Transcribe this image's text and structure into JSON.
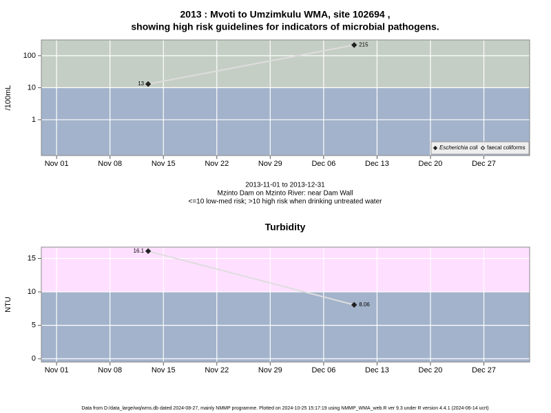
{
  "footer": "Data from D:/data_large/wq/wms.db dated 2024-08-27, mainly NMMP programme. Plotted on 2024-10-25 15:17:19 using NMMP_WMA_web.R ver 9.3 under R version 4.4.1 (2024-06-14 ucrt)",
  "chart_data": [
    {
      "type": "line",
      "title": [
        "2013 : Mvoti to Umzimkulu WMA, site 102694 ,",
        "showing high risk guidelines for indicators of microbial pathogens."
      ],
      "y_label": "/100mL",
      "caption": [
        "2013-11-01 to 2013-12-31",
        "Mzinto Dam on Mzinto River: near Dam Wall",
        "<=10 low-med risk; >10 high risk when drinking untreated water"
      ],
      "log_scale": true,
      "x": [
        "2013-11-13",
        "2013-12-10"
      ],
      "series": [
        {
          "name": "Escherichia coli",
          "color": "#222222",
          "line_color": "#dddddd",
          "marker": "filled-diamond",
          "values": [
            13,
            215
          ]
        },
        {
          "name": "faecal coliforms",
          "color": "#222222",
          "line_color": "#dddddd",
          "marker": "open-diamond",
          "values": [
            null,
            null
          ]
        }
      ],
      "xlim": [
        "2013-10-30",
        "2014-01-02"
      ],
      "xticks": [
        {
          "value": "2013-11-01",
          "label": "Nov 01"
        },
        {
          "value": "2013-11-08",
          "label": "Nov 08"
        },
        {
          "value": "2013-11-15",
          "label": "Nov 15"
        },
        {
          "value": "2013-11-22",
          "label": "Nov 22"
        },
        {
          "value": "2013-11-29",
          "label": "Nov 29"
        },
        {
          "value": "2013-12-06",
          "label": "Dec 06"
        },
        {
          "value": "2013-12-13",
          "label": "Dec 13"
        },
        {
          "value": "2013-12-20",
          "label": "Dec 20"
        },
        {
          "value": "2013-12-27",
          "label": "Dec 27"
        }
      ],
      "ylim": [
        0.076,
        310
      ],
      "yticks": [
        1,
        10,
        100
      ],
      "threshold": 10,
      "band_colors": {
        "above": "#c5cec4",
        "below": "#a3b3cb"
      },
      "grid": true,
      "legend": "bottom right"
    },
    {
      "type": "line",
      "title": [
        "Turbidity"
      ],
      "y_label": "NTU",
      "log_scale": false,
      "x": [
        "2013-11-13",
        "2013-12-10"
      ],
      "values": [
        16.1,
        8.06
      ],
      "color": "#222222",
      "line_color": "#dddddd",
      "xlim": [
        "2013-10-30",
        "2014-01-02"
      ],
      "xticks": [
        {
          "value": "2013-11-01",
          "label": "Nov 01"
        },
        {
          "value": "2013-11-08",
          "label": "Nov 08"
        },
        {
          "value": "2013-11-15",
          "label": "Nov 15"
        },
        {
          "value": "2013-11-22",
          "label": "Nov 22"
        },
        {
          "value": "2013-11-29",
          "label": "Nov 29"
        },
        {
          "value": "2013-12-06",
          "label": "Dec 06"
        },
        {
          "value": "2013-12-13",
          "label": "Dec 13"
        },
        {
          "value": "2013-12-20",
          "label": "Dec 20"
        },
        {
          "value": "2013-12-27",
          "label": "Dec 27"
        }
      ],
      "ylim": [
        -0.5,
        16.7
      ],
      "yticks": [
        0,
        5,
        10,
        15
      ],
      "threshold": 10,
      "band_colors": {
        "above": "#ffdfff",
        "below": "#a3b3cb"
      },
      "grid": true
    }
  ]
}
